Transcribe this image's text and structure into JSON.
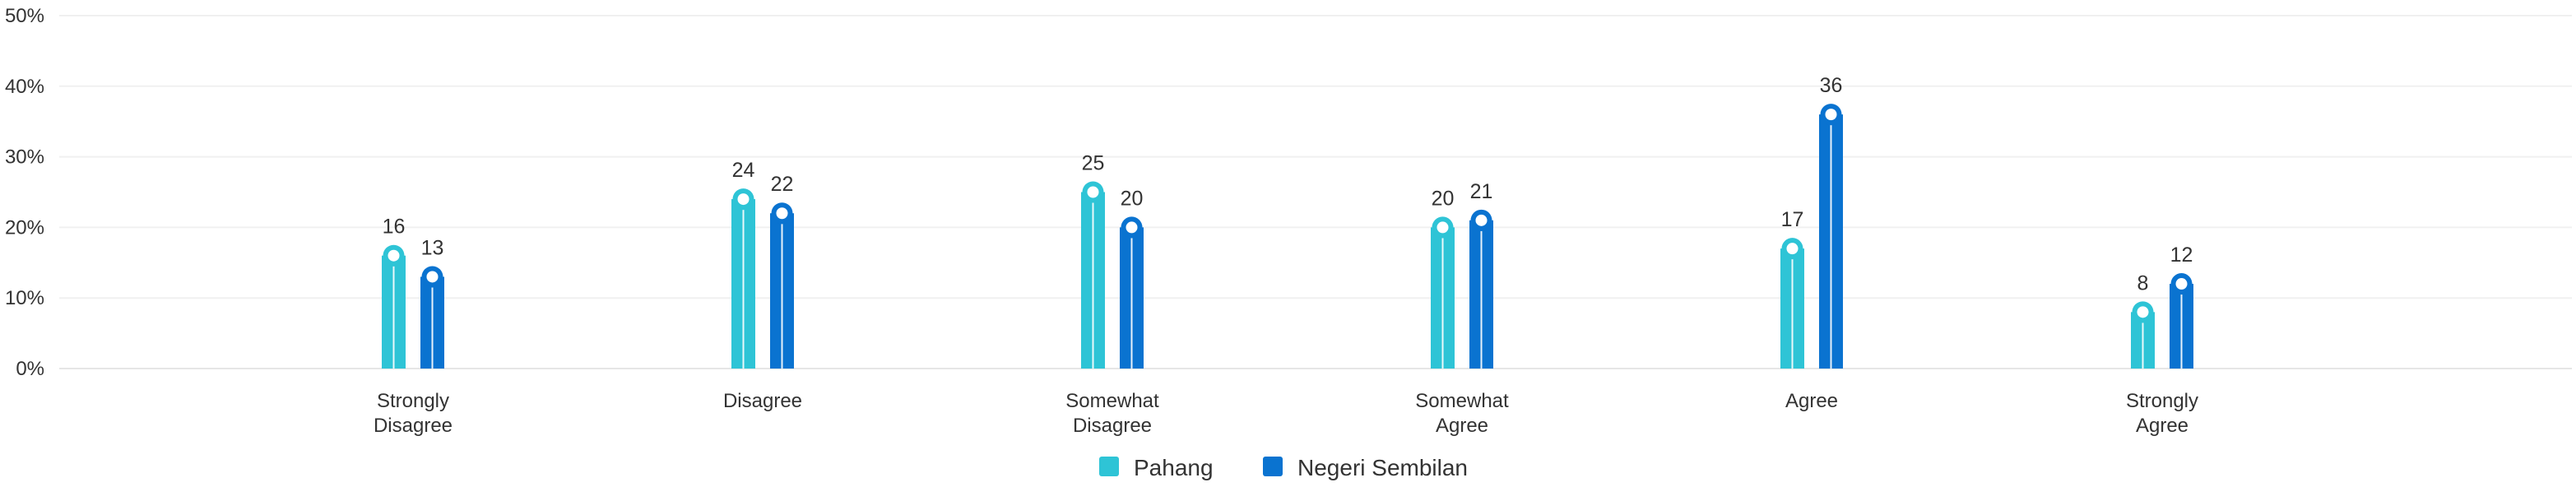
{
  "chart_data": {
    "type": "bar",
    "categories": [
      [
        "Strongly",
        "Disagree"
      ],
      [
        "Disagree"
      ],
      [
        "Somewhat",
        "Disagree"
      ],
      [
        "Somewhat",
        "Agree"
      ],
      [
        "Agree"
      ],
      [
        "Strongly",
        "Agree"
      ]
    ],
    "series": [
      {
        "name": "Pahang",
        "color": "#2ec4d6",
        "values": [
          16,
          24,
          25,
          20,
          17,
          8
        ]
      },
      {
        "name": "Negeri Sembilan",
        "color": "#0a73d0",
        "values": [
          13,
          22,
          20,
          21,
          36,
          12
        ]
      }
    ],
    "ylim": [
      0,
      50
    ],
    "yticks": [
      0,
      10,
      20,
      30,
      40,
      50
    ],
    "ytick_suffix": "%",
    "grid": true,
    "legend_position": "bottom-center",
    "title": "",
    "xlabel": "",
    "ylabel": ""
  }
}
